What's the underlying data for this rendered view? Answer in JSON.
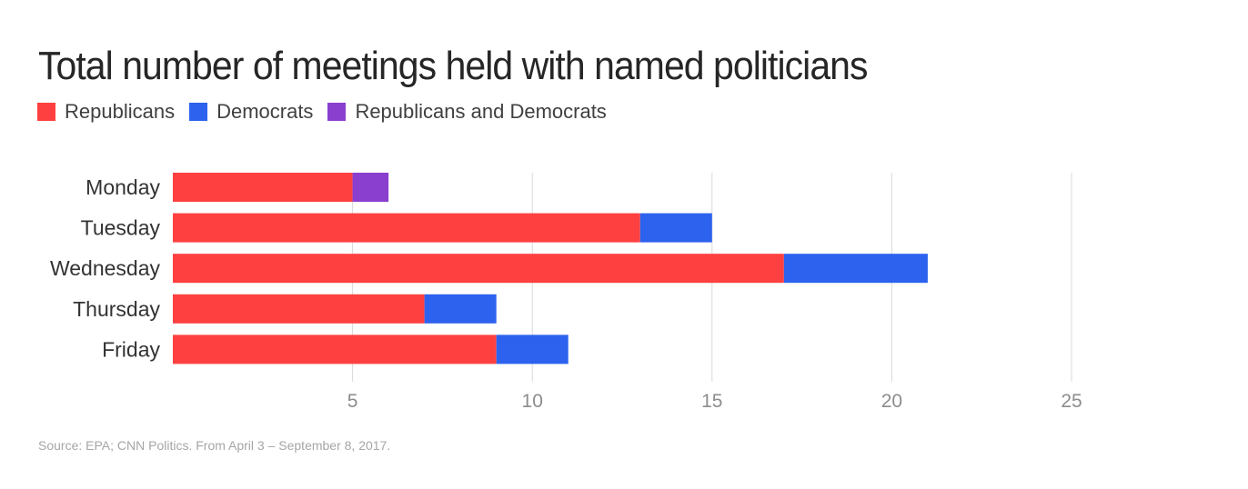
{
  "colors": {
    "republicans": "#ff4040",
    "democrats": "#2d62ee",
    "both": "#8b3fcf",
    "grid": "#d9d9d9",
    "axis_text": "#8c8c8c",
    "category_text": "#333333"
  },
  "chart_data": {
    "type": "bar",
    "orientation": "horizontal",
    "stacked": true,
    "title": "Total number of meetings held with named politicians",
    "categories": [
      "Monday",
      "Tuesday",
      "Wednesday",
      "Thursday",
      "Friday"
    ],
    "series": [
      {
        "name": "Republicans",
        "color": "#ff4040",
        "values": [
          5,
          13,
          17,
          7,
          9
        ]
      },
      {
        "name": "Democrats",
        "color": "#2d62ee",
        "values": [
          0,
          2,
          4,
          2,
          2
        ]
      },
      {
        "name": "Republicans and Democrats",
        "color": "#8b3fcf",
        "values": [
          1,
          0,
          0,
          0,
          0
        ]
      }
    ],
    "xlim": [
      0,
      25
    ],
    "xticks": [
      5,
      10,
      15,
      20,
      25
    ],
    "grid": "vertical",
    "legend_position": "top-left"
  },
  "source": "Source: EPA; CNN Politics. From April 3 – September 8, 2017."
}
